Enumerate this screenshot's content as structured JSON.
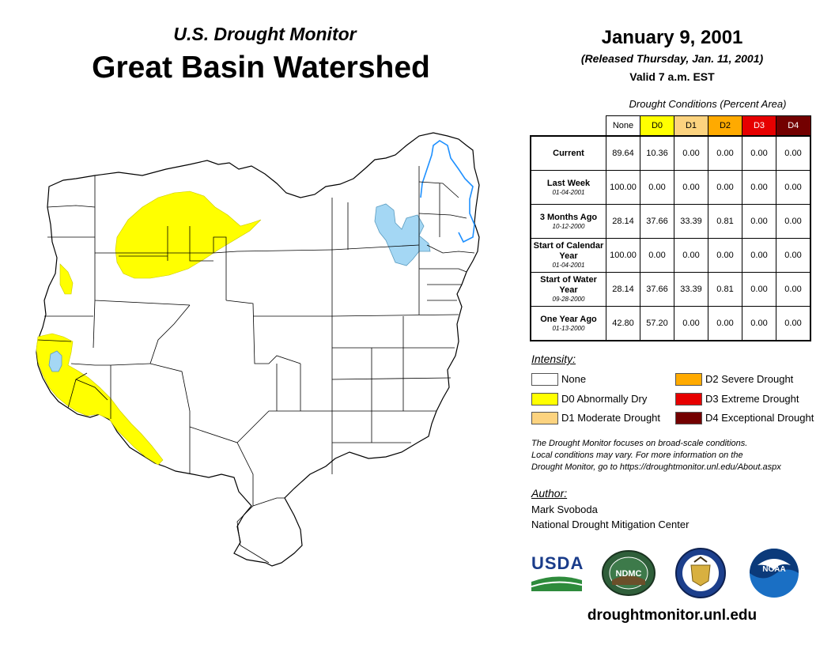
{
  "header": {
    "subtitle": "U.S. Drought Monitor",
    "title": "Great Basin Watershed",
    "date": "January 9, 2001",
    "released": "(Released Thursday, Jan. 11, 2001)",
    "valid": "Valid 7 a.m. EST"
  },
  "table": {
    "caption": "Drought Conditions (Percent Area)",
    "columns": [
      "None",
      "D0",
      "D1",
      "D2",
      "D3",
      "D4"
    ],
    "column_colors": [
      "#ffffff",
      "#ffff00",
      "#fcd37f",
      "#ffaa00",
      "#e60000",
      "#730000"
    ],
    "rows": [
      {
        "label": "Current",
        "date": "",
        "values": [
          "89.64",
          "10.36",
          "0.00",
          "0.00",
          "0.00",
          "0.00"
        ]
      },
      {
        "label": "Last Week",
        "date": "01-04-2001",
        "values": [
          "100.00",
          "0.00",
          "0.00",
          "0.00",
          "0.00",
          "0.00"
        ]
      },
      {
        "label": "3 Months Ago",
        "date": "10-12-2000",
        "values": [
          "28.14",
          "37.66",
          "33.39",
          "0.81",
          "0.00",
          "0.00"
        ]
      },
      {
        "label": "Start of Calendar Year",
        "date": "01-04-2001",
        "values": [
          "100.00",
          "0.00",
          "0.00",
          "0.00",
          "0.00",
          "0.00"
        ]
      },
      {
        "label": "Start of Water Year",
        "date": "09-28-2000",
        "values": [
          "28.14",
          "37.66",
          "33.39",
          "0.81",
          "0.00",
          "0.00"
        ]
      },
      {
        "label": "One Year Ago",
        "date": "01-13-2000",
        "values": [
          "42.80",
          "57.20",
          "0.00",
          "0.00",
          "0.00",
          "0.00"
        ]
      }
    ]
  },
  "legend": {
    "title": "Intensity:",
    "items": [
      {
        "label": "None",
        "color": "#ffffff"
      },
      {
        "label": "D0 Abnormally Dry",
        "color": "#ffff00"
      },
      {
        "label": "D1 Moderate Drought",
        "color": "#fcd37f"
      },
      {
        "label": "D2 Severe Drought",
        "color": "#ffaa00"
      },
      {
        "label": "D3 Extreme Drought",
        "color": "#e60000"
      },
      {
        "label": "D4 Exceptional Drought",
        "color": "#730000"
      }
    ]
  },
  "note": {
    "line1": "The Drought Monitor focuses on broad-scale conditions.",
    "line2": "Local conditions may vary. For more information on the",
    "line3": "Drought Monitor, go to https://droughtmonitor.unl.edu/About.aspx"
  },
  "author": {
    "title": "Author:",
    "name": "Mark Svoboda",
    "org": "National Drought Mitigation Center"
  },
  "logos": {
    "usda": "USDA",
    "ndmc": "NDMC",
    "noaa": "NOAA"
  },
  "website": "droughtmonitor.unl.edu",
  "colors": {
    "water": "#a4d7f4",
    "river": "#1e90ff",
    "d0": "#ffff00"
  }
}
